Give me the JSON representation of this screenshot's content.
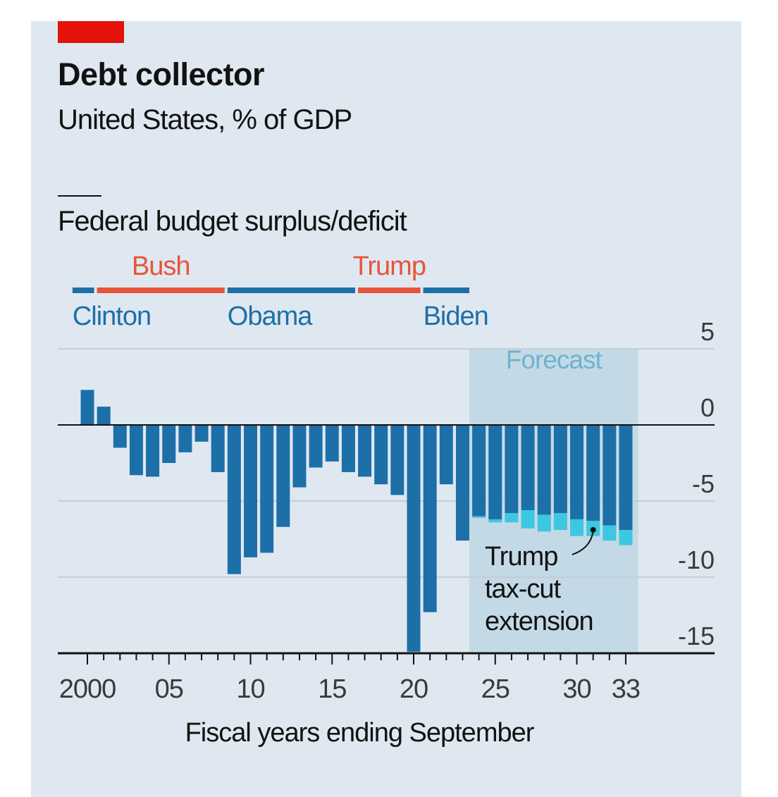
{
  "colors": {
    "background": "#dfe8f0",
    "brand_tag": "#e3120b",
    "deficit_bar": "#1d6fa8",
    "tax_cut_extension": "#3cc8e0",
    "democrat": "#1d6fa8",
    "republican": "#e6553a",
    "forecast_shade": "#c3dae6",
    "forecast_label": "#6fb3cf",
    "gridline": "#c4cdd6",
    "axis": "#121212"
  },
  "header": {
    "title": "Debt collector",
    "subtitle": "United States, % of GDP"
  },
  "chart_data": {
    "type": "bar",
    "section_title": "Federal budget surplus/deficit",
    "xlabel": "Fiscal years ending September",
    "ylabel": "",
    "ylim": [
      -15,
      5
    ],
    "yticks": [
      5,
      0,
      -5,
      -10,
      -15
    ],
    "ytick_labels": [
      "5",
      "0",
      "-5",
      "-10",
      "-15"
    ],
    "y_axis_side": "right",
    "grid": true,
    "x_ticks": [
      {
        "year": 2000,
        "label": "2000"
      },
      {
        "year": 2005,
        "label": "05"
      },
      {
        "year": 2010,
        "label": "10"
      },
      {
        "year": 2015,
        "label": "15"
      },
      {
        "year": 2020,
        "label": "20"
      },
      {
        "year": 2025,
        "label": "25"
      },
      {
        "year": 2030,
        "label": "30"
      },
      {
        "year": 2033,
        "label": "33"
      }
    ],
    "forecast": {
      "label": "Forecast",
      "from_year": 2024,
      "to_year": 2033
    },
    "series": [
      {
        "values": [
          {
            "year": 2000,
            "value": 2.3
          },
          {
            "year": 2001,
            "value": 1.2
          },
          {
            "year": 2002,
            "value": -1.5
          },
          {
            "year": 2003,
            "value": -3.3
          },
          {
            "year": 2004,
            "value": -3.4
          },
          {
            "year": 2005,
            "value": -2.5
          },
          {
            "year": 2006,
            "value": -1.8
          },
          {
            "year": 2007,
            "value": -1.1
          },
          {
            "year": 2008,
            "value": -3.1
          },
          {
            "year": 2009,
            "value": -9.8
          },
          {
            "year": 2010,
            "value": -8.7
          },
          {
            "year": 2011,
            "value": -8.4
          },
          {
            "year": 2012,
            "value": -6.7
          },
          {
            "year": 2013,
            "value": -4.1
          },
          {
            "year": 2014,
            "value": -2.8
          },
          {
            "year": 2015,
            "value": -2.4
          },
          {
            "year": 2016,
            "value": -3.1
          },
          {
            "year": 2017,
            "value": -3.4
          },
          {
            "year": 2018,
            "value": -3.9
          },
          {
            "year": 2019,
            "value": -4.6
          },
          {
            "year": 2020,
            "value": -14.9
          },
          {
            "year": 2021,
            "value": -12.3
          },
          {
            "year": 2022,
            "value": -3.9
          },
          {
            "year": 2023,
            "value": -7.6
          },
          {
            "year": 2024,
            "value": -6.0
          },
          {
            "year": 2025,
            "value": -6.2
          },
          {
            "year": 2026,
            "value": -5.8
          },
          {
            "year": 2027,
            "value": -5.6
          },
          {
            "year": 2028,
            "value": -5.9
          },
          {
            "year": 2029,
            "value": -5.8
          },
          {
            "year": 2030,
            "value": -6.2
          },
          {
            "year": 2031,
            "value": -6.3
          },
          {
            "year": 2032,
            "value": -6.6
          },
          {
            "year": 2033,
            "value": -6.9
          }
        ]
      },
      {
        "name": "Trump tax-cut extension",
        "values": [
          {
            "year": 2024,
            "value": -0.1
          },
          {
            "year": 2025,
            "value": -0.2
          },
          {
            "year": 2026,
            "value": -0.6
          },
          {
            "year": 2027,
            "value": -1.2
          },
          {
            "year": 2028,
            "value": -1.1
          },
          {
            "year": 2029,
            "value": -1.1
          },
          {
            "year": 2030,
            "value": -1.1
          },
          {
            "year": 2031,
            "value": -1.0
          },
          {
            "year": 2032,
            "value": -1.0
          },
          {
            "year": 2033,
            "value": -1.0
          }
        ]
      }
    ],
    "annotation": {
      "lines": [
        "Trump",
        "tax-cut",
        "extension"
      ],
      "points_to_year": 2031
    },
    "presidents": [
      {
        "name": "Clinton",
        "party": "D",
        "from_year": 1999.5,
        "to_year": 2001.0,
        "label_row": "below"
      },
      {
        "name": "Bush",
        "party": "R",
        "from_year": 2001.0,
        "to_year": 2009.0,
        "label_row": "above"
      },
      {
        "name": "Obama",
        "party": "D",
        "from_year": 2009.0,
        "to_year": 2017.0,
        "label_row": "below"
      },
      {
        "name": "Trump",
        "party": "R",
        "from_year": 2017.0,
        "to_year": 2021.0,
        "label_row": "above"
      },
      {
        "name": "Biden",
        "party": "D",
        "from_year": 2021.0,
        "to_year": 2024.0,
        "label_row": "below"
      }
    ]
  }
}
